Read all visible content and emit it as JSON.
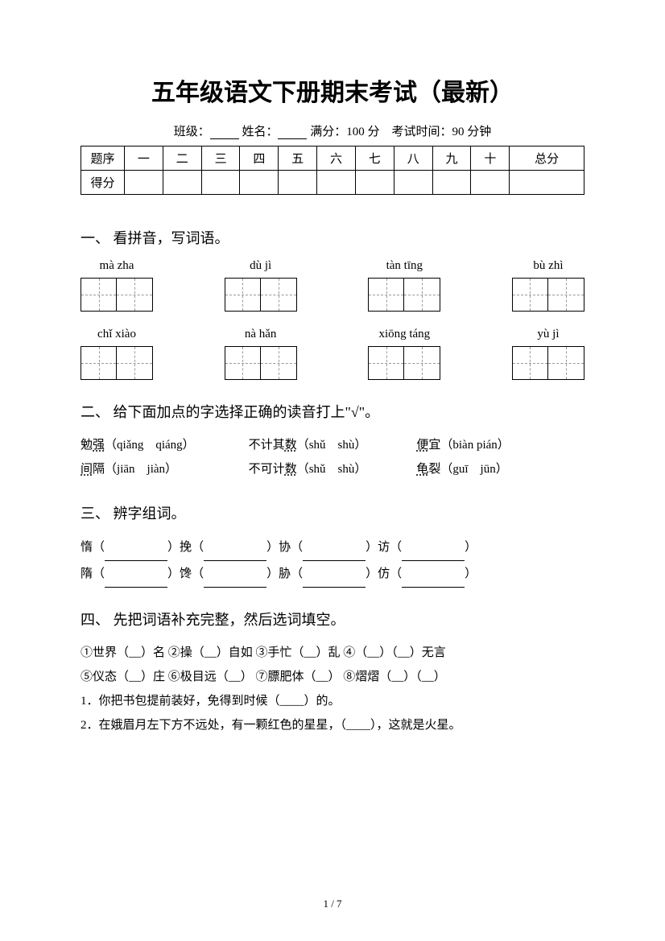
{
  "title": "五年级语文下册期末考试（最新）",
  "info": {
    "class_label": "班级：",
    "name_label": "姓名：",
    "full_score_label": "满分：",
    "full_score": "100 分",
    "time_label": "考试时间：",
    "time": "90 分钟"
  },
  "score_table": {
    "row1": [
      "题序",
      "一",
      "二",
      "三",
      "四",
      "五",
      "六",
      "七",
      "八",
      "九",
      "十",
      "总分"
    ],
    "row2_label": "得分"
  },
  "sections": {
    "s1": {
      "title": "一、 看拼音，写词语。",
      "row1": [
        "mà zha",
        "dù jì",
        "tàn tīng",
        "bù zhì"
      ],
      "row2": [
        "chǐ xiào",
        "nà hǎn",
        "xiōng táng",
        "yù jì"
      ]
    },
    "s2": {
      "title": "二、 给下面加点的字选择正确的读音打上\"√\"。",
      "items": [
        {
          "pre": "勉",
          "dot": "强",
          "opts": "（qiǎng　qiáng）"
        },
        {
          "pre": "不计其",
          "dot": "数",
          "opts": "（shǔ　shù）"
        },
        {
          "pre": "",
          "dot": "便",
          "post": "宜",
          "opts": "（biàn  pián）"
        },
        {
          "pre": "",
          "dot": "间",
          "post": "隔",
          "opts": "（jiān　jiàn）"
        },
        {
          "pre": "不可计",
          "dot": "数",
          "opts": "（shǔ　shù）"
        },
        {
          "pre": "",
          "dot": "龟",
          "post": "裂",
          "opts": "（guī　jūn）"
        }
      ]
    },
    "s3": {
      "title": "三、 辨字组词。",
      "line1": [
        "惰",
        "挽",
        "协",
        "访"
      ],
      "line2": [
        "隋",
        "馋",
        "胁",
        "仿"
      ]
    },
    "s4": {
      "title": "四、 先把词语补充完整，然后选词填空。",
      "l1": "①世界（__）名  ②操（__）自如  ③手忙（__）乱  ④（__）（__）无言",
      "l2": "⑤仪态（__）庄  ⑥极目远（__）  ⑦膘肥体（__）  ⑧熠熠（__）（__）",
      "q1": "1．你把书包提前装好，免得到时候（____）的。",
      "q2": "2．在娥眉月左下方不远处，有一颗红色的星星，（____），这就是火星。"
    }
  },
  "page": "1 / 7"
}
